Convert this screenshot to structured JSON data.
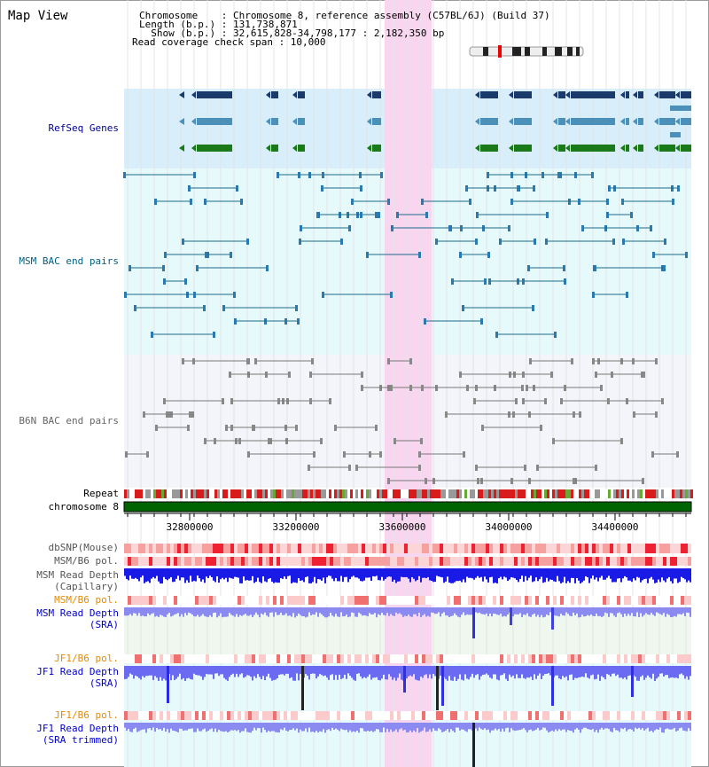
{
  "page": {
    "title": "Map View"
  },
  "info": {
    "line1": "Chromosome    : Chromosome 8, reference assembly (C57BL/6J) (Build 37)",
    "line2": "Length (b.p.) : 131,738,871",
    "line3": "  Show (b.p.) : 32,615,828-34,798,177 : 2,182,350 bp",
    "line4": "Read coverage check span : 10,000"
  },
  "tracks": {
    "refseq": "RefSeq Genes",
    "msm_bac": "MSM BAC end pairs",
    "b6n_bac": "B6N BAC end pairs",
    "repeat": "Repeat",
    "chromosome": "chromosome 8",
    "dbsnp": "dbSNP(Mouse)",
    "msm_b6_pol_1": "MSM/B6 pol.",
    "msm_read_depth_cap_1": "MSM Read Depth",
    "msm_read_depth_cap_2": "(Capillary)",
    "msm_b6_pol_2": "MSM/B6 pol.",
    "msm_read_depth_sra_1": "MSM Read Depth",
    "msm_read_depth_sra_2": "(SRA)",
    "jf1_b6_pol_1": "JF1/B6 pol.",
    "jf1_read_depth_sra_1": "JF1 Read Depth",
    "jf1_read_depth_sra_2": "(SRA)",
    "jf1_b6_pol_2": "JF1/B6 pol.",
    "jf1_read_depth_trim_1": "JF1 Read Depth",
    "jf1_read_depth_trim_2": "(SRA trimmed)"
  },
  "axis": {
    "ticks": [
      "32800000",
      "33200000",
      "33600000",
      "34000000",
      "34400000"
    ]
  },
  "colors": {
    "refseq_label": "#00008b",
    "msm_label": "#006080",
    "b6n_label": "#666666",
    "pol_label": "#e68a00",
    "depth_label": "#0000cc",
    "highlight": "#f9d6f0",
    "refseq_bg": "#d8eefa",
    "msm_bg": "#e6f9fb",
    "b6n_bg": "#f3f5fa"
  }
}
